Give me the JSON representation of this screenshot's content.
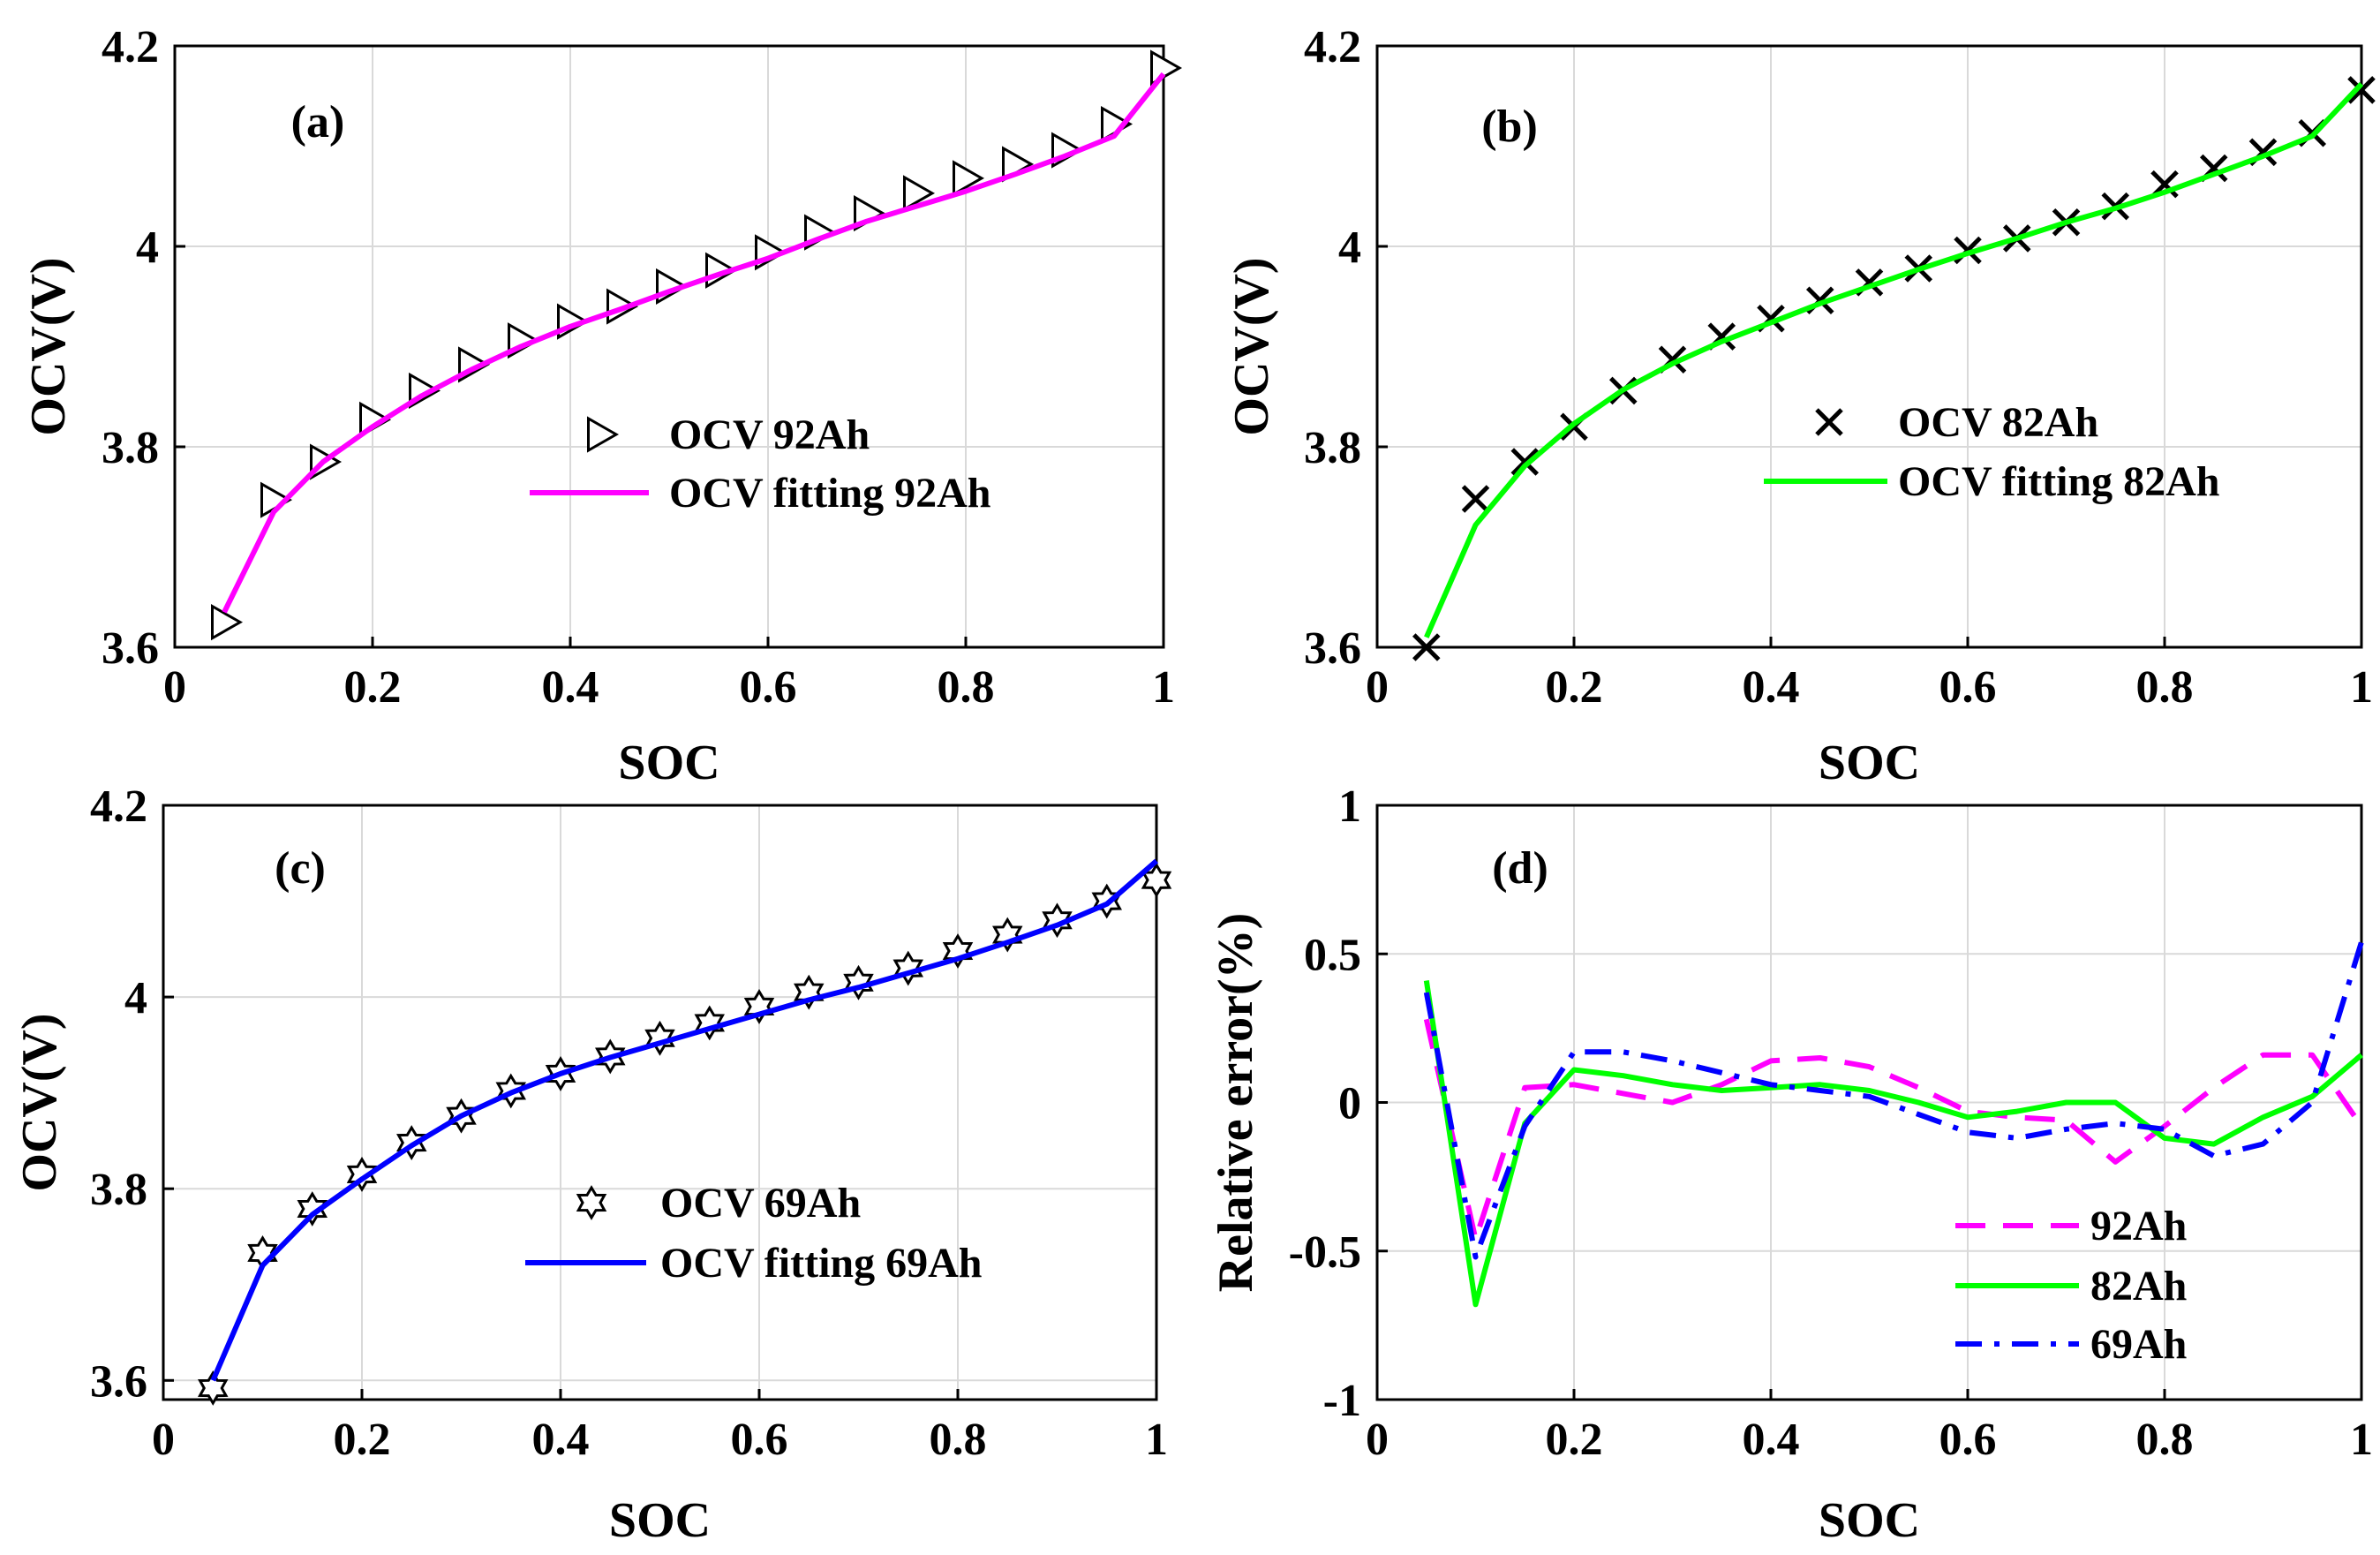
{
  "chart_data": [
    {
      "type": "line",
      "panel_label": "(a)",
      "xlabel": "SOC",
      "ylabel": "OCV(V)",
      "xlim": [
        0,
        1
      ],
      "ylim": [
        3.6,
        4.2
      ],
      "xticks": [
        "0",
        "0.2",
        "0.4",
        "0.6",
        "0.8",
        "1"
      ],
      "yticks": [
        "3.6",
        "3.8",
        "4",
        "4.2"
      ],
      "grid": true,
      "legend_position": "center-right",
      "series": [
        {
          "name": "OCV 92Ah",
          "style": "markers",
          "marker": "triangle-right",
          "color": "#000000",
          "x": [
            0.05,
            0.1,
            0.15,
            0.2,
            0.25,
            0.3,
            0.35,
            0.4,
            0.45,
            0.5,
            0.55,
            0.6,
            0.65,
            0.7,
            0.75,
            0.8,
            0.85,
            0.9,
            0.95,
            1.0
          ],
          "y": [
            3.625,
            3.747,
            3.785,
            3.827,
            3.856,
            3.882,
            3.906,
            3.925,
            3.94,
            3.96,
            3.976,
            3.994,
            4.014,
            4.033,
            4.053,
            4.068,
            4.082,
            4.096,
            4.122,
            4.178
          ]
        },
        {
          "name": "OCV fitting 92Ah",
          "style": "solid",
          "color": "#ff00ff",
          "x": [
            0.05,
            0.1,
            0.15,
            0.2,
            0.25,
            0.3,
            0.35,
            0.4,
            0.45,
            0.5,
            0.55,
            0.6,
            0.65,
            0.7,
            0.75,
            0.8,
            0.85,
            0.9,
            0.95,
            1.0
          ],
          "y": [
            3.635,
            3.735,
            3.785,
            3.82,
            3.851,
            3.877,
            3.9,
            3.92,
            3.937,
            3.955,
            3.972,
            3.988,
            4.007,
            4.025,
            4.04,
            4.055,
            4.072,
            4.09,
            4.11,
            4.172
          ]
        }
      ]
    },
    {
      "type": "line",
      "panel_label": "(b)",
      "xlabel": "SOC",
      "ylabel": "OCV(V)",
      "xlim": [
        0,
        1
      ],
      "ylim": [
        3.6,
        4.2
      ],
      "xticks": [
        "0",
        "0.2",
        "0.4",
        "0.6",
        "0.8",
        "1"
      ],
      "yticks": [
        "3.6",
        "3.8",
        "4",
        "4.2"
      ],
      "grid": true,
      "legend_position": "center-right",
      "series": [
        {
          "name": "OCV 82Ah",
          "style": "markers",
          "marker": "x",
          "color": "#000000",
          "x": [
            0.05,
            0.1,
            0.15,
            0.2,
            0.25,
            0.3,
            0.35,
            0.4,
            0.45,
            0.5,
            0.55,
            0.6,
            0.65,
            0.7,
            0.75,
            0.8,
            0.85,
            0.9,
            0.95,
            1.0
          ],
          "y": [
            3.6,
            3.748,
            3.785,
            3.82,
            3.856,
            3.887,
            3.91,
            3.928,
            3.946,
            3.964,
            3.978,
            3.996,
            4.008,
            4.024,
            4.04,
            4.062,
            4.078,
            4.094,
            4.113,
            4.156
          ]
        },
        {
          "name": "OCV fitting 82Ah",
          "style": "solid",
          "color": "#00ff00",
          "x": [
            0.05,
            0.1,
            0.15,
            0.2,
            0.25,
            0.3,
            0.35,
            0.4,
            0.45,
            0.5,
            0.55,
            0.6,
            0.65,
            0.7,
            0.75,
            0.8,
            0.85,
            0.9,
            0.95,
            1.0
          ],
          "y": [
            3.61,
            3.722,
            3.781,
            3.823,
            3.857,
            3.883,
            3.905,
            3.924,
            3.943,
            3.96,
            3.977,
            3.993,
            4.008,
            4.024,
            4.038,
            4.054,
            4.072,
            4.09,
            4.11,
            4.162
          ]
        }
      ]
    },
    {
      "type": "line",
      "panel_label": "(c)",
      "xlabel": "SOC",
      "ylabel": "OCV(V)",
      "xlim": [
        0,
        1
      ],
      "ylim": [
        3.58,
        4.2
      ],
      "xticks": [
        "0",
        "0.2",
        "0.4",
        "0.6",
        "0.8",
        "1"
      ],
      "yticks": [
        "3.6",
        "3.8",
        "4",
        "4.2"
      ],
      "grid": true,
      "legend_position": "center-right",
      "series": [
        {
          "name": "OCV 69Ah",
          "style": "markers",
          "marker": "hexagram",
          "color": "#000000",
          "x": [
            0.05,
            0.1,
            0.15,
            0.2,
            0.25,
            0.3,
            0.35,
            0.4,
            0.45,
            0.5,
            0.55,
            0.6,
            0.65,
            0.7,
            0.75,
            0.8,
            0.85,
            0.9,
            0.95,
            1.0
          ],
          "y": [
            3.592,
            3.733,
            3.779,
            3.815,
            3.848,
            3.876,
            3.902,
            3.92,
            3.938,
            3.957,
            3.973,
            3.99,
            4.005,
            4.015,
            4.03,
            4.048,
            4.065,
            4.08,
            4.1,
            4.122
          ]
        },
        {
          "name": "OCV fitting 69Ah",
          "style": "solid",
          "color": "#0000ff",
          "x": [
            0.05,
            0.1,
            0.15,
            0.2,
            0.25,
            0.3,
            0.35,
            0.4,
            0.45,
            0.5,
            0.55,
            0.6,
            0.65,
            0.7,
            0.75,
            0.8,
            0.85,
            0.9,
            0.95,
            1.0
          ],
          "y": [
            3.6,
            3.72,
            3.773,
            3.81,
            3.845,
            3.876,
            3.9,
            3.92,
            3.937,
            3.952,
            3.967,
            3.982,
            3.997,
            4.01,
            4.025,
            4.04,
            4.057,
            4.075,
            4.097,
            4.142
          ]
        }
      ]
    },
    {
      "type": "line",
      "panel_label": "(d)",
      "xlabel": "SOC",
      "ylabel": "Relative error(%)",
      "xlim": [
        0,
        1
      ],
      "ylim": [
        -1,
        1
      ],
      "xticks": [
        "0",
        "0.2",
        "0.4",
        "0.6",
        "0.8",
        "1"
      ],
      "yticks": [
        "-1",
        "-0.5",
        "0",
        "0.5",
        "1"
      ],
      "grid": true,
      "legend_position": "bottom-right",
      "series": [
        {
          "name": "92Ah",
          "style": "dashed",
          "color": "#ff00ff",
          "x": [
            0.05,
            0.1,
            0.15,
            0.2,
            0.25,
            0.3,
            0.35,
            0.4,
            0.45,
            0.5,
            0.55,
            0.6,
            0.65,
            0.7,
            0.75,
            0.8,
            0.85,
            0.9,
            0.95,
            1.0
          ],
          "y": [
            0.28,
            -0.46,
            0.05,
            0.06,
            0.03,
            0.0,
            0.06,
            0.14,
            0.15,
            0.12,
            0.05,
            -0.03,
            -0.05,
            -0.06,
            -0.2,
            -0.08,
            0.05,
            0.16,
            0.16,
            -0.08
          ]
        },
        {
          "name": "82Ah",
          "style": "solid",
          "color": "#00ff00",
          "x": [
            0.05,
            0.1,
            0.15,
            0.2,
            0.25,
            0.3,
            0.35,
            0.4,
            0.45,
            0.5,
            0.55,
            0.6,
            0.65,
            0.7,
            0.75,
            0.8,
            0.85,
            0.9,
            0.95,
            1.0
          ],
          "y": [
            0.41,
            -0.68,
            -0.07,
            0.11,
            0.09,
            0.06,
            0.04,
            0.05,
            0.06,
            0.04,
            0.0,
            -0.05,
            -0.03,
            0.0,
            0.0,
            -0.12,
            -0.14,
            -0.05,
            0.02,
            0.16
          ]
        },
        {
          "name": "69Ah",
          "style": "dashdot",
          "color": "#0000ff",
          "x": [
            0.05,
            0.1,
            0.15,
            0.2,
            0.25,
            0.3,
            0.35,
            0.4,
            0.45,
            0.5,
            0.55,
            0.6,
            0.65,
            0.7,
            0.75,
            0.8,
            0.85,
            0.9,
            0.95,
            1.0
          ],
          "y": [
            0.37,
            -0.52,
            -0.08,
            0.17,
            0.17,
            0.14,
            0.1,
            0.06,
            0.04,
            0.02,
            -0.04,
            -0.1,
            -0.12,
            -0.09,
            -0.07,
            -0.09,
            -0.18,
            -0.14,
            0.0,
            0.54
          ]
        }
      ]
    }
  ]
}
